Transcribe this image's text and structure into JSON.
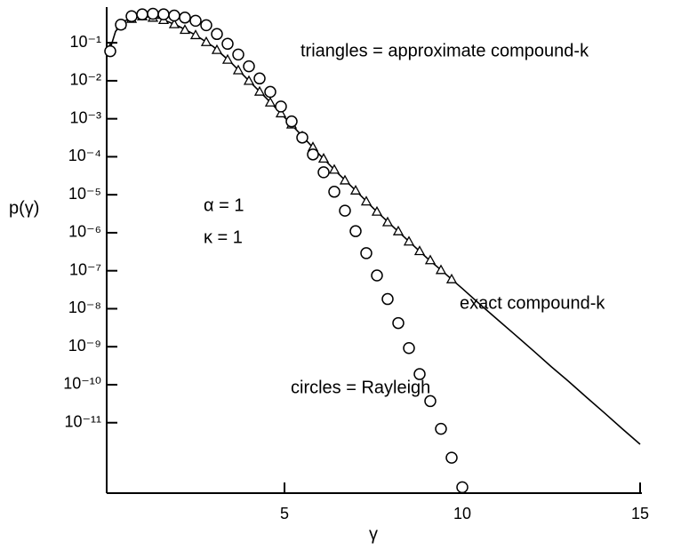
{
  "chart_data": {
    "type": "line",
    "x_label": "γ",
    "y_label": "p(γ)",
    "annotations": [
      "triangles = approximate compound-k",
      "exact compound-k",
      "circles = Rayleigh",
      "α = 1",
      "κ = 1"
    ],
    "log_y": true,
    "xlim": [
      0,
      15
    ],
    "xticks": [
      5,
      10,
      15
    ],
    "ylim": [
      1.4e-13,
      0.78
    ],
    "yticks": [
      {
        "value": 0.1,
        "label": "10⁻¹"
      },
      {
        "value": 0.01,
        "label": "10⁻²"
      },
      {
        "value": 0.001,
        "label": "10⁻³"
      },
      {
        "value": 0.0001,
        "label": "10⁻⁴"
      },
      {
        "value": 1e-05,
        "label": "10⁻⁵"
      },
      {
        "value": 1e-06,
        "label": "10⁻⁶"
      },
      {
        "value": 1e-07,
        "label": "10⁻⁷"
      },
      {
        "value": 1e-08,
        "label": "10⁻⁸"
      },
      {
        "value": 1e-09,
        "label": "10⁻⁹"
      },
      {
        "value": 1e-10,
        "label": "10⁻¹⁰"
      },
      {
        "value": 1e-11,
        "label": "10⁻¹¹"
      }
    ],
    "series": [
      {
        "marker": "line",
        "color": "#000000",
        "x": [
          0.05,
          0.25,
          0.5,
          1,
          1.5,
          2,
          2.5,
          3,
          3.5,
          4,
          4.5,
          5,
          5.5,
          6,
          6.5,
          7,
          7.5,
          8,
          8.5,
          9,
          9.5,
          10,
          10.5,
          11,
          11.5,
          12,
          12.5,
          13,
          13.5,
          14,
          14.5,
          15
        ],
        "values": [
          0.05,
          0.2,
          0.38,
          0.5,
          0.44,
          0.28,
          0.16,
          0.079,
          0.03,
          0.01,
          0.0034,
          0.0011,
          0.00035,
          0.00011,
          3.7e-05,
          1.3e-05,
          4.4e-06,
          1.6e-06,
          5.9e-07,
          2.2e-07,
          8.7e-08,
          3.4e-08,
          1.3e-08,
          5.1e-09,
          2e-09,
          7.8e-10,
          3e-10,
          1.2e-10,
          4.6e-11,
          1.8e-11,
          6.9e-12,
          2.7e-12
        ]
      },
      {
        "marker": "triangle",
        "color": "#000000",
        "x": [
          0.1,
          0.4,
          0.7,
          1.0,
          1.3,
          1.6,
          1.9,
          2.2,
          2.5,
          2.8,
          3.1,
          3.4,
          3.7,
          4.0,
          4.3,
          4.6,
          4.9,
          5.2,
          5.5,
          5.8,
          6.1,
          6.4,
          6.7,
          7.0,
          7.3,
          7.6,
          7.9,
          8.2,
          8.5,
          8.8,
          9.1,
          9.4,
          9.7
        ],
        "values": [
          0.071,
          0.3,
          0.43,
          0.5,
          0.46,
          0.4,
          0.31,
          0.22,
          0.16,
          0.105,
          0.065,
          0.036,
          0.019,
          0.01,
          0.0052,
          0.0027,
          0.0014,
          0.00071,
          0.00035,
          0.00018,
          9e-05,
          4.6e-05,
          2.4e-05,
          1.3e-05,
          6.7e-06,
          3.6e-06,
          1.9e-06,
          1.1e-06,
          5.9e-07,
          3.3e-07,
          1.9e-07,
          1.05e-07,
          6e-08
        ]
      },
      {
        "marker": "circle",
        "color": "#000000",
        "x": [
          0.1,
          0.4,
          0.7,
          1.0,
          1.3,
          1.6,
          1.9,
          2.2,
          2.5,
          2.8,
          3.1,
          3.4,
          3.7,
          4.0,
          4.3,
          4.6,
          4.9,
          5.2,
          5.5,
          5.8,
          6.1,
          6.4,
          6.7,
          7.0,
          7.3,
          7.6,
          7.9,
          8.2,
          8.5,
          8.8,
          9.1,
          9.4,
          9.7,
          10.0
        ],
        "values": [
          0.06,
          0.3,
          0.5,
          0.56,
          0.58,
          0.56,
          0.52,
          0.46,
          0.38,
          0.29,
          0.17,
          0.094,
          0.049,
          0.024,
          0.0115,
          0.0051,
          0.0021,
          0.00085,
          0.00032,
          0.000115,
          3.9e-05,
          1.2e-05,
          3.8e-06,
          1.1e-06,
          2.9e-07,
          7.5e-08,
          1.8e-08,
          4.2e-09,
          9.2e-10,
          1.9e-10,
          3.7e-11,
          6.9e-12,
          1.2e-12,
          2e-13
        ]
      }
    ]
  }
}
